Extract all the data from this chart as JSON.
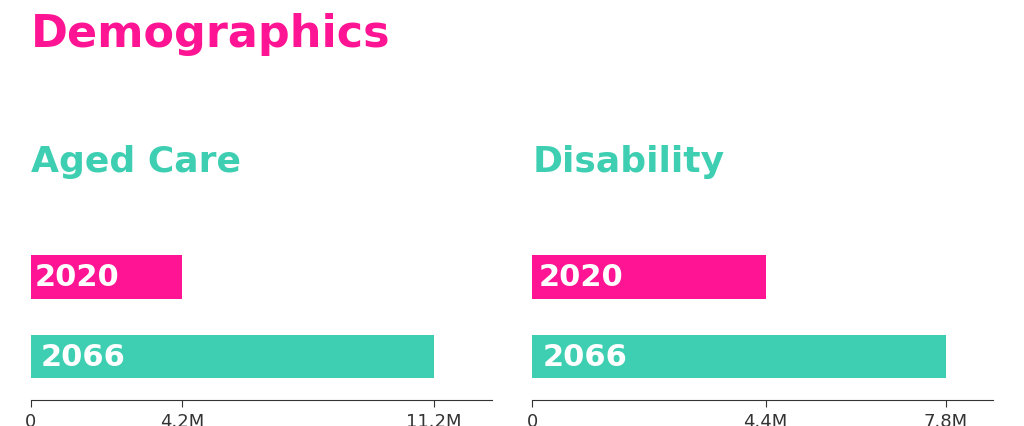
{
  "title": "Demographics",
  "title_color": "#FF1493",
  "title_fontsize": 32,
  "sections": [
    {
      "label": "Aged Care",
      "label_color": "#3ECFB2",
      "label_fontsize": 26,
      "bars": [
        {
          "year": "2020",
          "value": 4200000,
          "color": "#FF1493"
        },
        {
          "year": "2066",
          "value": 11200000,
          "color": "#3ECFB2"
        }
      ],
      "xticks": [
        0,
        4200000,
        11200000
      ],
      "xticklabels": [
        "0",
        "4.2M",
        "11.2M"
      ],
      "xlim": [
        0,
        12800000
      ]
    },
    {
      "label": "Disability",
      "label_color": "#3ECFB2",
      "label_fontsize": 26,
      "bars": [
        {
          "year": "2020",
          "value": 4400000,
          "color": "#FF1493"
        },
        {
          "year": "2066",
          "value": 7800000,
          "color": "#3ECFB2"
        }
      ],
      "xticks": [
        0,
        4400000,
        7800000
      ],
      "xticklabels": [
        "0",
        "4.4M",
        "7.8M"
      ],
      "xlim": [
        0,
        8700000
      ]
    }
  ],
  "bar_height": 0.55,
  "bar_label_fontsize": 22,
  "bar_label_color": "#FFFFFF",
  "background_color": "#FFFFFF",
  "tick_fontsize": 13,
  "tick_color": "#333333"
}
